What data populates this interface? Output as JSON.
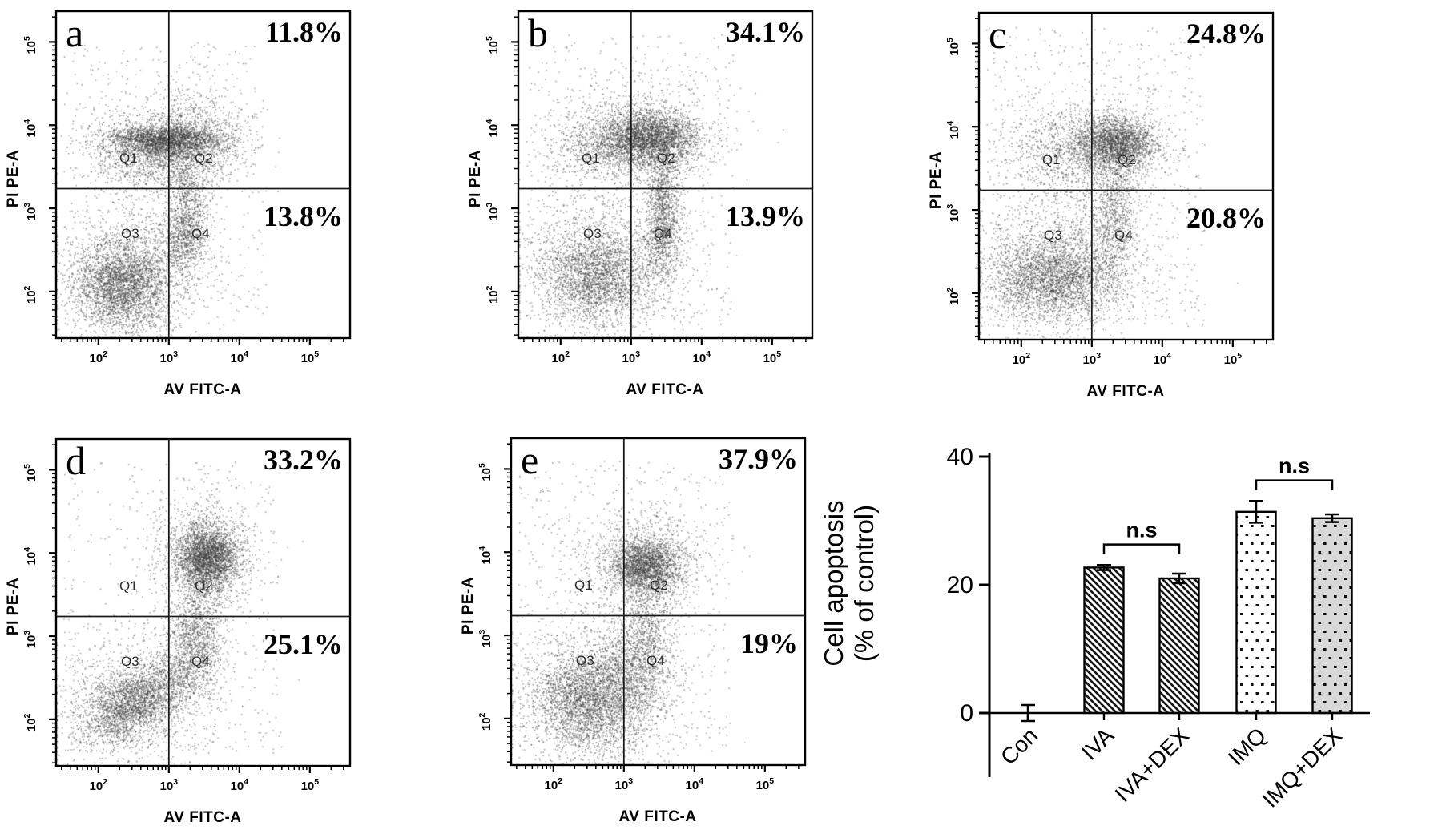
{
  "quadrant_labels": [
    "Q1",
    "Q2",
    "Q3",
    "Q4"
  ],
  "chart_data": [
    {
      "type": "scatter",
      "panel_letter": "a",
      "xlabel": "AV FITC-A",
      "ylabel": "PI PE-A",
      "x_scale": "log",
      "y_scale": "log",
      "x_tick_exponents": [
        2,
        3,
        4,
        5
      ],
      "y_tick_exponents": [
        2,
        3,
        4,
        5
      ],
      "quadrant_gate": {
        "x": 1000,
        "y": 1500
      },
      "annotations": {
        "upper_right_pct": "11.8%",
        "lower_right_pct": "13.8%"
      },
      "clusters": [
        {
          "n": 2200,
          "cx": 2.95,
          "cy": 3.82,
          "sx": 0.42,
          "sy": 0.09
        },
        {
          "n": 1300,
          "cx": 2.9,
          "cy": 3.8,
          "sx": 0.55,
          "sy": 0.22
        },
        {
          "n": 700,
          "cx": 2.95,
          "cy": 3.5,
          "sx": 0.45,
          "sy": 0.18
        },
        {
          "n": 450,
          "cx": 3.4,
          "cy": 4.0,
          "sx": 0.28,
          "sy": 0.3
        },
        {
          "n": 2600,
          "cx": 2.32,
          "cy": 2.08,
          "sx": 0.32,
          "sy": 0.26
        },
        {
          "n": 1300,
          "cx": 2.42,
          "cy": 2.18,
          "sx": 0.55,
          "sy": 0.45
        },
        {
          "n": 800,
          "cx": 3.2,
          "cy": 2.7,
          "sx": 0.18,
          "sy": 0.26
        },
        {
          "n": 400,
          "cx": 3.27,
          "cy": 3.1,
          "sx": 0.14,
          "sy": 0.35
        },
        {
          "n": 500,
          "uniform": [
            1.5,
            4.4,
            1.6,
            5.0
          ]
        }
      ]
    },
    {
      "type": "scatter",
      "panel_letter": "b",
      "xlabel": "AV FITC-A",
      "ylabel": "PI PE-A",
      "x_scale": "log",
      "y_scale": "log",
      "x_tick_exponents": [
        2,
        3,
        4,
        5
      ],
      "y_tick_exponents": [
        2,
        3,
        4,
        5
      ],
      "quadrant_gate": {
        "x": 1000,
        "y": 1500
      },
      "annotations": {
        "upper_right_pct": "34.1%",
        "lower_right_pct": "13.9%"
      },
      "clusters": [
        {
          "n": 2100,
          "cx": 3.3,
          "cy": 3.85,
          "sx": 0.3,
          "sy": 0.15
        },
        {
          "n": 1300,
          "cx": 2.85,
          "cy": 3.78,
          "sx": 0.45,
          "sy": 0.2
        },
        {
          "n": 900,
          "cx": 3.15,
          "cy": 3.9,
          "sx": 0.55,
          "sy": 0.33
        },
        {
          "n": 900,
          "cx": 3.45,
          "cy": 3.05,
          "sx": 0.12,
          "sy": 0.38
        },
        {
          "n": 500,
          "cx": 3.42,
          "cy": 2.6,
          "sx": 0.14,
          "sy": 0.25
        },
        {
          "n": 2200,
          "cx": 2.5,
          "cy": 2.18,
          "sx": 0.38,
          "sy": 0.27
        },
        {
          "n": 1100,
          "cx": 2.5,
          "cy": 2.3,
          "sx": 0.6,
          "sy": 0.5
        },
        {
          "n": 600,
          "uniform": [
            1.5,
            4.5,
            1.6,
            5.1
          ]
        }
      ]
    },
    {
      "type": "scatter",
      "panel_letter": "c",
      "xlabel": "AV FITC-A",
      "ylabel": "PI PE-A",
      "x_scale": "log",
      "y_scale": "log",
      "x_tick_exponents": [
        2,
        3,
        4,
        5
      ],
      "y_tick_exponents": [
        2,
        3,
        4,
        5
      ],
      "quadrant_gate": {
        "x": 1000,
        "y": 1500
      },
      "annotations": {
        "upper_right_pct": "24.8%",
        "lower_right_pct": "20.8%"
      },
      "clusters": [
        {
          "n": 2200,
          "cx": 3.35,
          "cy": 3.8,
          "sx": 0.28,
          "sy": 0.16
        },
        {
          "n": 1200,
          "cx": 2.8,
          "cy": 3.72,
          "sx": 0.5,
          "sy": 0.3
        },
        {
          "n": 900,
          "cx": 3.3,
          "cy": 2.95,
          "sx": 0.16,
          "sy": 0.45
        },
        {
          "n": 2400,
          "cx": 2.45,
          "cy": 2.2,
          "sx": 0.45,
          "sy": 0.25
        },
        {
          "n": 1300,
          "cx": 2.5,
          "cy": 2.3,
          "sx": 0.65,
          "sy": 0.5
        },
        {
          "n": 800,
          "uniform": [
            1.5,
            4.6,
            1.6,
            5.2
          ]
        }
      ]
    },
    {
      "type": "scatter",
      "panel_letter": "d",
      "xlabel": "AV FITC-A",
      "ylabel": "PI PE-A",
      "x_scale": "log",
      "y_scale": "log",
      "x_tick_exponents": [
        2,
        3,
        4,
        5
      ],
      "y_tick_exponents": [
        2,
        3,
        4,
        5
      ],
      "quadrant_gate": {
        "x": 1000,
        "y": 1500
      },
      "annotations": {
        "upper_right_pct": "33.2%",
        "lower_right_pct": "25.1%"
      },
      "clusters": [
        {
          "n": 2700,
          "cx": 3.55,
          "cy": 3.95,
          "sx": 0.22,
          "sy": 0.2
        },
        {
          "n": 900,
          "cx": 3.5,
          "cy": 4.0,
          "sx": 0.4,
          "sy": 0.38
        },
        {
          "n": 700,
          "cx": 3.45,
          "cy": 3.1,
          "sx": 0.15,
          "sy": 0.4
        },
        {
          "n": 2400,
          "cx": 2.5,
          "cy": 2.2,
          "sx": 0.42,
          "sy": 0.2,
          "rot": 0.45
        },
        {
          "n": 1000,
          "cx": 2.55,
          "cy": 2.25,
          "sx": 0.6,
          "sy": 0.42
        },
        {
          "n": 700,
          "cx": 3.25,
          "cy": 2.8,
          "sx": 0.22,
          "sy": 0.3
        },
        {
          "n": 400,
          "uniform": [
            1.5,
            4.6,
            1.6,
            5.1
          ]
        }
      ]
    },
    {
      "type": "scatter",
      "panel_letter": "e",
      "xlabel": "AV FITC-A",
      "ylabel": "PI PE-A",
      "x_scale": "log",
      "y_scale": "log",
      "x_tick_exponents": [
        2,
        3,
        4,
        5
      ],
      "y_tick_exponents": [
        2,
        3,
        4,
        5
      ],
      "quadrant_gate": {
        "x": 1000,
        "y": 1500
      },
      "annotations": {
        "upper_right_pct": "37.9%",
        "lower_right_pct": "19%"
      },
      "clusters": [
        {
          "n": 2000,
          "cx": 3.3,
          "cy": 3.85,
          "sx": 0.25,
          "sy": 0.16
        },
        {
          "n": 900,
          "cx": 3.25,
          "cy": 3.9,
          "sx": 0.45,
          "sy": 0.33
        },
        {
          "n": 900,
          "cx": 3.3,
          "cy": 3.0,
          "sx": 0.18,
          "sy": 0.42
        },
        {
          "n": 2600,
          "cx": 2.5,
          "cy": 2.22,
          "sx": 0.38,
          "sy": 0.3
        },
        {
          "n": 1200,
          "cx": 2.55,
          "cy": 2.3,
          "sx": 0.6,
          "sy": 0.5
        },
        {
          "n": 700,
          "cx": 3.05,
          "cy": 2.55,
          "sx": 0.28,
          "sy": 0.3
        },
        {
          "n": 600,
          "uniform": [
            1.5,
            4.5,
            1.6,
            5.1
          ]
        }
      ]
    },
    {
      "type": "bar",
      "ylabel_lines": [
        "Cell apoptosis",
        "(% of control)"
      ],
      "categories": [
        "Con",
        "IVA",
        "IVA+DEX",
        "IMQ",
        "IMQ+DEX"
      ],
      "values": [
        0,
        22.7,
        21.0,
        31.4,
        30.4
      ],
      "errors": [
        1.25,
        0.4,
        0.75,
        1.7,
        0.6
      ],
      "y_ticks": [
        0,
        20,
        40
      ],
      "ylim": [
        -10,
        40
      ],
      "bar_styles": [
        "none",
        "hatch",
        "hatch",
        "dots-white",
        "dots-gray"
      ],
      "colors": {
        "hatch_line": "#151515",
        "dot": "#111111",
        "gray_fill": "#d8d8d8",
        "bar_border": "#000000"
      },
      "significance": [
        {
          "a": "IVA",
          "b": "IVA+DEX",
          "label": "n.s",
          "y_value": 26.3
        },
        {
          "a": "IMQ",
          "b": "IMQ+DEX",
          "label": "n.s",
          "y_value": 36.3
        }
      ]
    }
  ]
}
